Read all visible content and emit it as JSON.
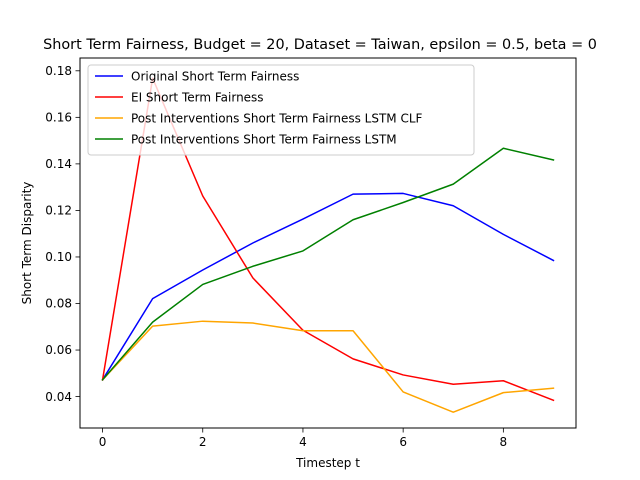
{
  "chart_data": {
    "type": "line",
    "title": "Short Term Fairness, Budget = 20, Dataset = Taiwan, epsilon = 0.5, beta = 0",
    "xlabel": "Timestep t",
    "ylabel": "Short Term Disparity",
    "xlim": [
      -0.45,
      9.45
    ],
    "ylim": [
      0.0265,
      0.1855
    ],
    "xticks": [
      0,
      2,
      4,
      6,
      8
    ],
    "xtick_labels": [
      "0",
      "2",
      "4",
      "6",
      "8"
    ],
    "yticks": [
      0.04,
      0.06,
      0.08,
      0.1,
      0.12,
      0.14,
      0.16,
      0.18
    ],
    "ytick_labels": [
      "0.04",
      "0.06",
      "0.08",
      "0.10",
      "0.12",
      "0.14",
      "0.16",
      "0.18"
    ],
    "grid": false,
    "legend_position": "top-left",
    "x": [
      0,
      1,
      2,
      3,
      4,
      5,
      6,
      7,
      8,
      9
    ],
    "series": [
      {
        "name": "Original Short Term Fairness",
        "color": "#0000ff",
        "values": [
          0.0472,
          0.0821,
          0.0944,
          0.106,
          0.1163,
          0.127,
          0.1273,
          0.122,
          0.1097,
          0.0985
        ]
      },
      {
        "name": "EI Short Term Fairness",
        "color": "#ff0000",
        "values": [
          0.0472,
          0.1768,
          0.1262,
          0.091,
          0.0685,
          0.0562,
          0.0493,
          0.0453,
          0.0468,
          0.0384
        ]
      },
      {
        "name": "Post Interventions Short Term Fairness LSTM CLF",
        "color": "#ffa500",
        "values": [
          0.0472,
          0.0703,
          0.0724,
          0.0716,
          0.0683,
          0.0683,
          0.042,
          0.0333,
          0.0417,
          0.0436
        ]
      },
      {
        "name": "Post Interventions Short Term Fairness LSTM",
        "color": "#008000",
        "values": [
          0.0472,
          0.072,
          0.0882,
          0.096,
          0.1026,
          0.116,
          0.1234,
          0.1313,
          0.1467,
          0.1417
        ]
      }
    ]
  }
}
